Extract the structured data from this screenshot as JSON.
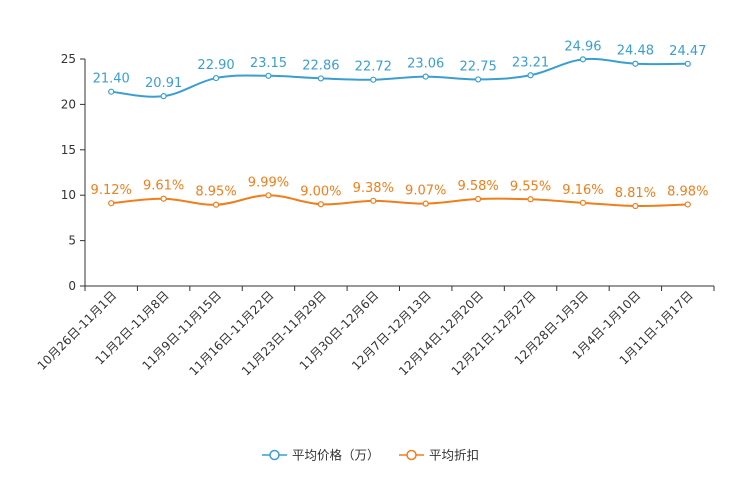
{
  "chart_data": {
    "type": "line",
    "title": "",
    "xlabel": "",
    "ylabel": "",
    "ylim": [
      0,
      25
    ],
    "yticks": [
      0,
      5,
      10,
      15,
      20,
      25
    ],
    "legend_position": "bottom-center",
    "categories": [
      "10月26日-11月1日",
      "11月2日-11月8日",
      "11月9日-11月15日",
      "11月16日-11月22日",
      "11月23日-11月29日",
      "11月30日-12月6日",
      "12月7日-12月13日",
      "12月14日-12月20日",
      "12月21日-12月27日",
      "12月28日-1月3日",
      "1月4日-1月10日",
      "1月11日-1月17日"
    ],
    "series": [
      {
        "name": "平均价格（万）",
        "color": "#3a9fd0",
        "values": [
          21.4,
          20.91,
          22.9,
          23.15,
          22.86,
          22.72,
          23.06,
          22.75,
          23.21,
          24.96,
          24.48,
          24.47
        ],
        "labels": [
          "21.40",
          "20.91",
          "22.90",
          "23.15",
          "22.86",
          "22.72",
          "23.06",
          "22.75",
          "23.21",
          "24.96",
          "24.48",
          "24.47"
        ]
      },
      {
        "name": "平均折扣",
        "color": "#f07e1b",
        "values": [
          9.12,
          9.61,
          8.95,
          9.99,
          9.0,
          9.38,
          9.07,
          9.58,
          9.55,
          9.16,
          8.81,
          8.98
        ],
        "labels": [
          "9.12%",
          "9.61%",
          "8.95%",
          "9.99%",
          "9.00%",
          "9.38%",
          "9.07%",
          "9.58%",
          "9.55%",
          "9.16%",
          "8.81%",
          "8.98%"
        ]
      }
    ]
  }
}
